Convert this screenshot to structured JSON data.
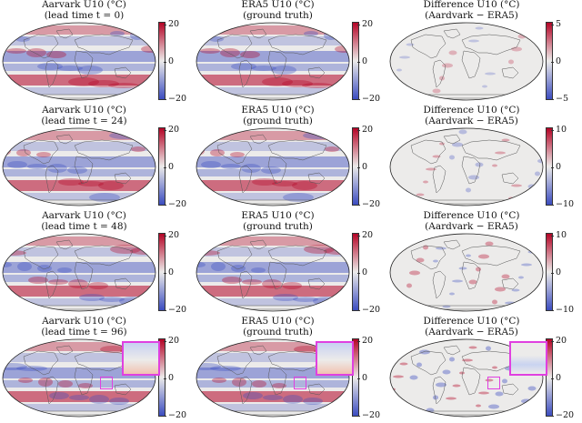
{
  "rows": [
    {
      "panels": [
        {
          "title1": "Aarvark U10 (°C)",
          "title2": "(lead time t = 0)",
          "ticks": [
            "20",
            "0",
            "−20"
          ],
          "kind": "field",
          "seed": 1
        },
        {
          "title1": "ERA5 U10 (°C)",
          "title2": "(ground truth)",
          "ticks": [
            "20",
            "0",
            "−20"
          ],
          "kind": "field",
          "seed": 1
        },
        {
          "title1": "Difference U10 (°C)",
          "title2": "(Aardvark − ERA5)",
          "ticks": [
            "5",
            "0",
            "−5"
          ],
          "kind": "diff",
          "seed": 1
        }
      ]
    },
    {
      "panels": [
        {
          "title1": "Aarvark U10 (°C)",
          "title2": "(lead time t = 24)",
          "ticks": [
            "20",
            "0",
            "−20"
          ],
          "kind": "field",
          "seed": 2
        },
        {
          "title1": "ERA5 U10 (°C)",
          "title2": "(ground truth)",
          "ticks": [
            "20",
            "0",
            "−20"
          ],
          "kind": "field",
          "seed": 2
        },
        {
          "title1": "Difference U10 (°C)",
          "title2": "(Aardvark − ERA5)",
          "ticks": [
            "10",
            "0",
            "−10"
          ],
          "kind": "diff",
          "seed": 2
        }
      ]
    },
    {
      "panels": [
        {
          "title1": "Aarvark U10 (°C)",
          "title2": "(lead time t = 48)",
          "ticks": [
            "20",
            "0",
            "−20"
          ],
          "kind": "field",
          "seed": 3
        },
        {
          "title1": "ERA5 U10 (°C)",
          "title2": "(ground truth)",
          "ticks": [
            "20",
            "0",
            "−20"
          ],
          "kind": "field",
          "seed": 3
        },
        {
          "title1": "Difference U10 (°C)",
          "title2": "(Aardvark − ERA5)",
          "ticks": [
            "10",
            "0",
            "−10"
          ],
          "kind": "diff",
          "seed": 3
        }
      ]
    },
    {
      "panels": [
        {
          "title1": "Aarvark U10 (°C)",
          "title2": "(lead time t = 96)",
          "ticks": [
            "20",
            "0",
            "−20"
          ],
          "kind": "field",
          "seed": 4,
          "inset": true
        },
        {
          "title1": "ERA5 U10 (°C)",
          "title2": "(ground truth)",
          "ticks": [
            "20",
            "0",
            "−20"
          ],
          "kind": "field",
          "seed": 4,
          "inset": true
        },
        {
          "title1": "Difference U10 (°C)",
          "title2": "(Aardvark − ERA5)",
          "ticks": [
            "20",
            "0",
            "−20"
          ],
          "kind": "diff",
          "seed": 4,
          "inset": true
        }
      ]
    }
  ],
  "colors": {
    "cold": "#3b4cc0",
    "neutral": "#ecebea",
    "warm": "#b40426",
    "inset_border": "#e040e0",
    "land_outline": "#555555"
  }
}
